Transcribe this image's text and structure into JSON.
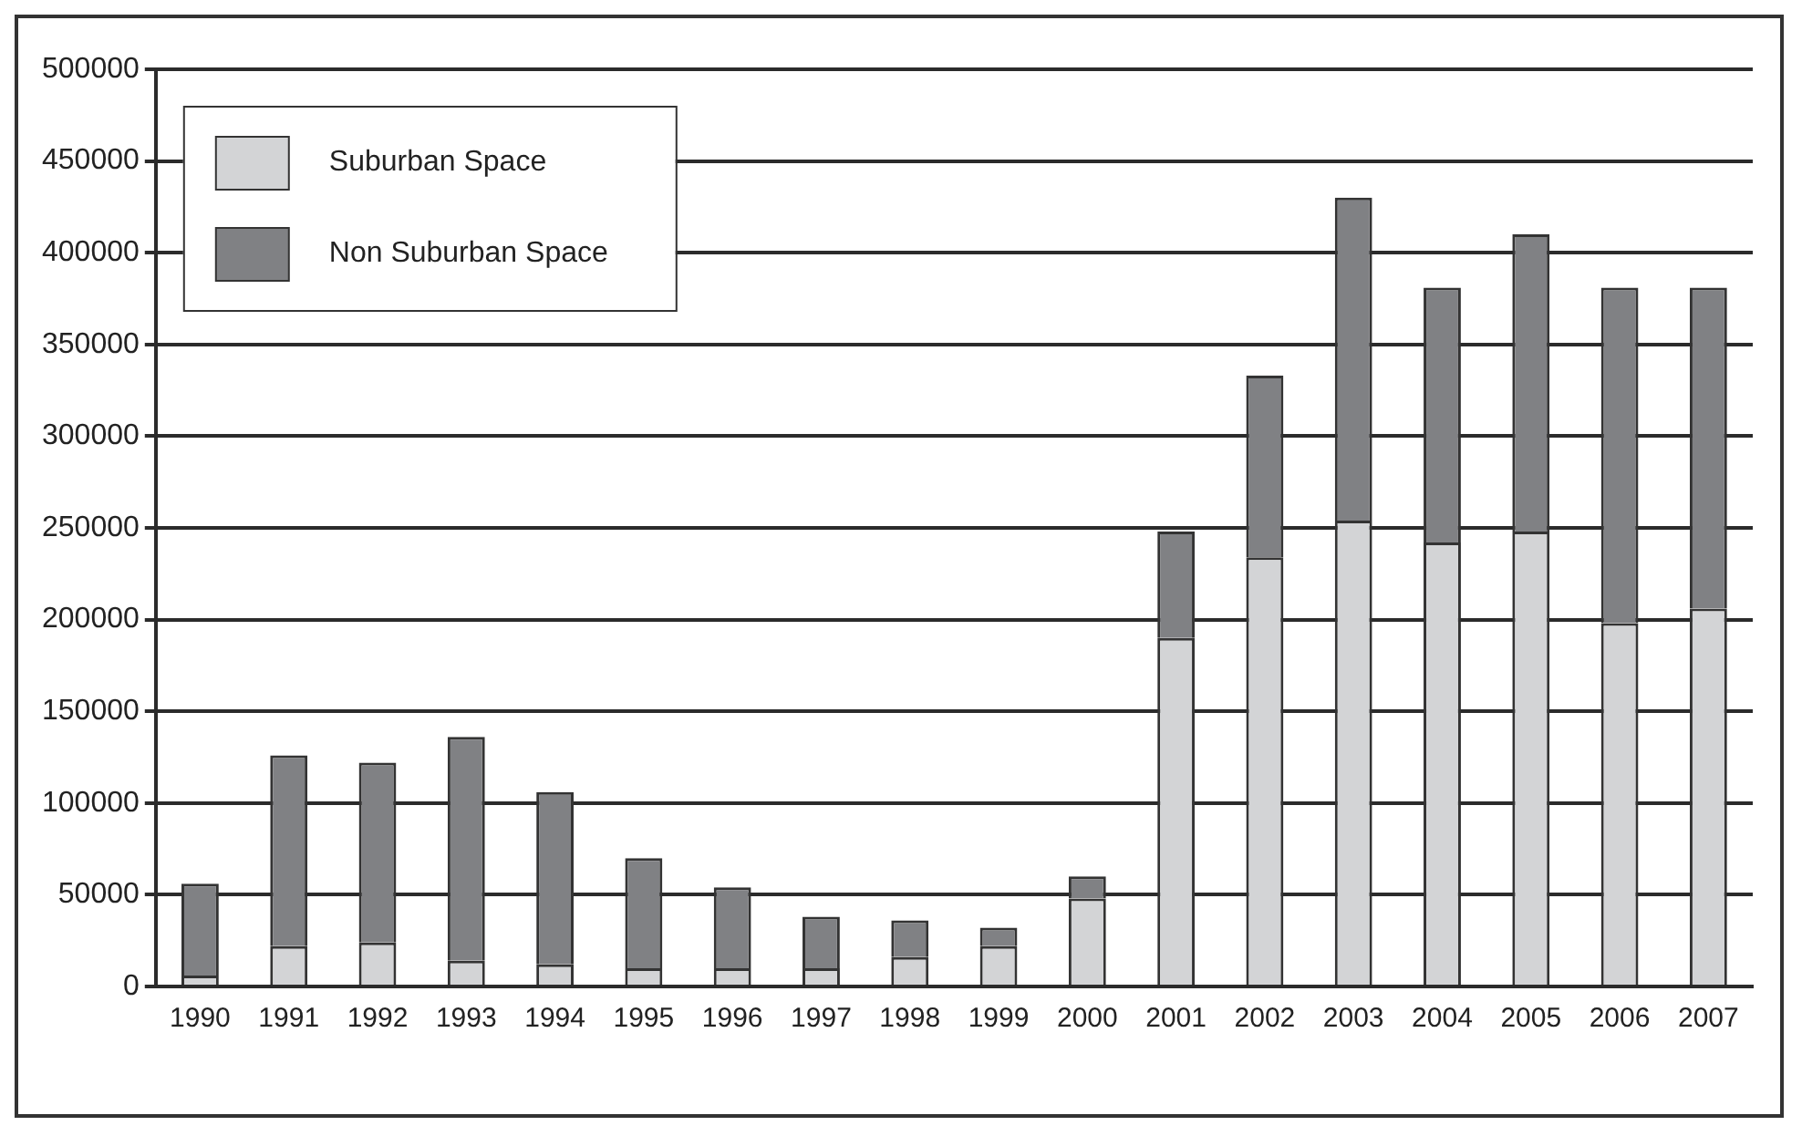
{
  "chart_data": {
    "type": "bar",
    "stacked": true,
    "categories": [
      "1990",
      "1991",
      "1992",
      "1993",
      "1994",
      "1995",
      "1996",
      "1997",
      "1998",
      "1999",
      "2000",
      "2001",
      "2002",
      "2003",
      "2004",
      "2005",
      "2006",
      "2007"
    ],
    "series": [
      {
        "name": "Suburban Space",
        "color": "#d3d4d6",
        "values": [
          6000,
          22000,
          24000,
          14000,
          12000,
          10000,
          10000,
          10000,
          16000,
          22000,
          48000,
          190000,
          234000,
          254000,
          242000,
          248000,
          198000,
          206000
        ]
      },
      {
        "name": "Non Suburban Space",
        "color": "#808184",
        "values": [
          50000,
          104000,
          98000,
          122000,
          94000,
          60000,
          44000,
          28000,
          20000,
          10000,
          12000,
          58000,
          99000,
          176000,
          139000,
          162000,
          183000,
          175000
        ]
      }
    ],
    "ylim": [
      0,
      500000
    ],
    "yticks": [
      0,
      50000,
      100000,
      150000,
      200000,
      250000,
      300000,
      350000,
      400000,
      450000,
      500000
    ],
    "grid": "y",
    "legend": "top left"
  }
}
